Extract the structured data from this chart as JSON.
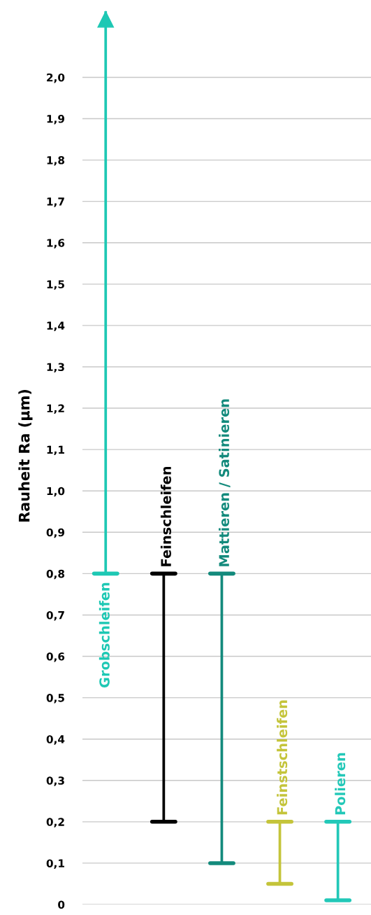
{
  "chart_data": {
    "type": "bar",
    "ylabel": "Rauheit Ra (µm)",
    "categories": [
      "Grobschleifen",
      "Feinschleifen",
      "Mattieren / Satinieren",
      "Feinstschleifen",
      "Polieren"
    ],
    "base": [
      0.8,
      0.2,
      0.1,
      0.05,
      0.01
    ],
    "values": [
      1.36,
      0.6,
      0.7,
      0.15,
      0.19
    ],
    "colors": [
      "#1ec8b4",
      "#000000",
      "#138a7c",
      "#c4c43a",
      "#22c8b8"
    ],
    "ylim": [
      0,
      2.17
    ],
    "yticks": [
      0,
      {
        "value": 0.1,
        "label": "0,1"
      },
      {
        "value": 0.2,
        "label": "0,2"
      },
      {
        "value": 0.3,
        "label": "0,3"
      },
      {
        "value": 0.4,
        "label": "0,4"
      },
      {
        "value": 0.5,
        "label": "0,5"
      },
      {
        "value": 0.6,
        "label": "0,6"
      },
      {
        "value": 0.7,
        "label": "0,7"
      },
      {
        "value": 0.8,
        "label": "0,8"
      },
      {
        "value": 0.9,
        "label": "0,9"
      },
      {
        "value": 1.0,
        "label": "1,0"
      },
      {
        "value": 1.1,
        "label": "1,1"
      },
      {
        "value": 1.2,
        "label": "1,2"
      },
      {
        "value": 1.3,
        "label": "1,3"
      },
      {
        "value": 1.4,
        "label": "1,4"
      },
      {
        "value": 1.5,
        "label": "1,5"
      },
      {
        "value": 1.6,
        "label": "1,6"
      },
      {
        "value": 1.7,
        "label": "1,7"
      },
      {
        "value": 1.8,
        "label": "1,8"
      },
      {
        "value": 1.9,
        "label": "1,9"
      },
      {
        "value": 2.0,
        "label": "2,0"
      }
    ],
    "grid": "y"
  }
}
